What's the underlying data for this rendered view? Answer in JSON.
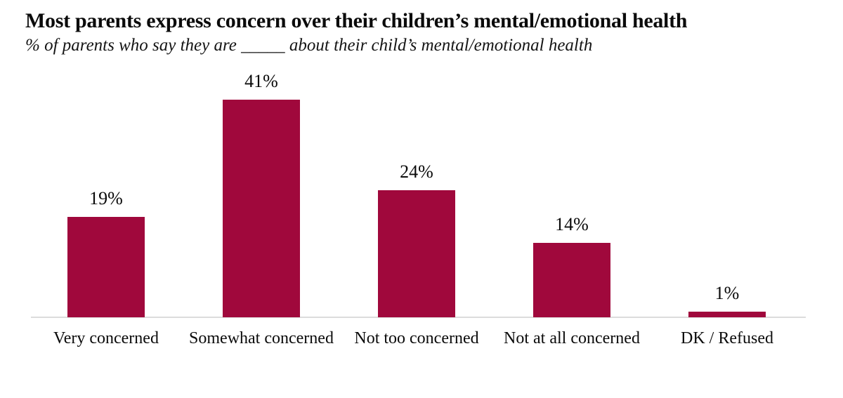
{
  "page": {
    "background_color": "#ffffff",
    "text_color": "#0b0b0b"
  },
  "header": {
    "title": "Most parents express concern over their children’s mental/emotional health",
    "subtitle": "% of parents who say they are _____ about their child’s mental/emotional health"
  },
  "chart_data": {
    "type": "bar",
    "title": "Most parents express concern over their children’s mental/emotional health",
    "subtitle": "% of parents who say they are _____ about their child’s mental/emotional health",
    "categories": [
      "Very concerned",
      "Somewhat concerned",
      "Not too concerned",
      "Not at all concerned",
      "DK / Refused"
    ],
    "values": [
      19,
      41,
      24,
      14,
      1
    ],
    "data_labels": [
      "19%",
      "41%",
      "24%",
      "14%",
      "1%"
    ],
    "unit": "%",
    "xlabel": "",
    "ylabel": "",
    "ylim": [
      0,
      45
    ],
    "grid": false,
    "legend": false,
    "y_axis_visible": false,
    "baseline_visible": true,
    "bar_color": "#A0083C",
    "axis_line_color": "#DCDCDC",
    "label_color": "#0b0b0b"
  }
}
